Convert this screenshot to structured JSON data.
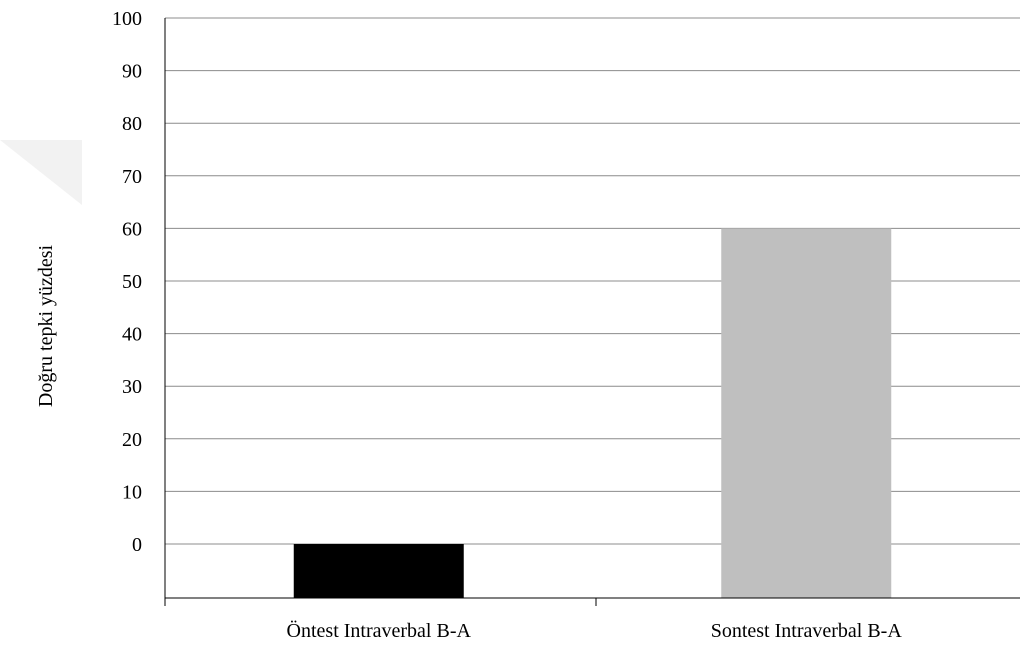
{
  "chart_data": {
    "type": "bar",
    "categories": [
      "Öntest Intraverbal B-A",
      "Sontest Intraverbal B-A"
    ],
    "values": [
      0,
      60
    ],
    "bar_colors": [
      "#000000",
      "#bfbfbf"
    ],
    "ylabel": "Doğru tepki yüzdesi",
    "xlabel": "",
    "ylim": [
      0,
      100
    ],
    "yticks": [
      0,
      10,
      20,
      30,
      40,
      50,
      60,
      70,
      80,
      90,
      100
    ],
    "grid": true,
    "legend": "none"
  }
}
